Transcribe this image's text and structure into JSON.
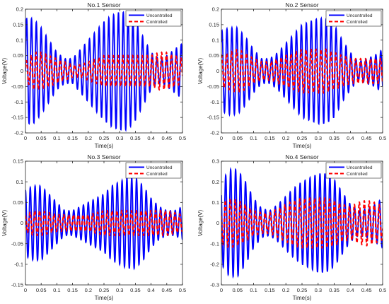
{
  "chart_data": [
    {
      "type": "line",
      "title": "No.1 Sensor",
      "xlabel": "Time(s)",
      "ylabel": "Voltage(V)",
      "xlim": [
        0,
        0.5
      ],
      "ylim": [
        -0.2,
        0.2
      ],
      "xticks": [
        "0",
        "0.05",
        "0.1",
        "0.15",
        "0.2",
        "0.25",
        "0.3",
        "0.35",
        "0.4",
        "0.45",
        "0.5"
      ],
      "yticks": [
        "-0.2",
        "-0.15",
        "-0.1",
        "-0.05",
        "0",
        "0.05",
        "0.1",
        "0.15",
        "0.2"
      ],
      "grid": false,
      "legend_position": "top-right",
      "series": [
        {
          "name": "Uncontrolled",
          "color": "#0000ff",
          "style": "solid",
          "x": [
            0,
            0.025,
            0.05,
            0.075,
            0.1,
            0.125,
            0.15,
            0.175,
            0.2,
            0.225,
            0.25,
            0.275,
            0.3,
            0.325,
            0.35,
            0.375,
            0.4,
            0.425,
            0.45,
            0.475,
            0.5
          ],
          "envelope": [
            0.17,
            0.17,
            0.14,
            0.1,
            0.06,
            0.04,
            0.04,
            0.07,
            0.1,
            0.13,
            0.16,
            0.18,
            0.19,
            0.19,
            0.16,
            0.11,
            0.06,
            0.04,
            0.05,
            0.07,
            0.09
          ],
          "frequency_hz": 65,
          "phase": 0
        },
        {
          "name": "Controlled",
          "color": "#ff0000",
          "style": "dashed",
          "x": [
            0,
            0.025,
            0.05,
            0.075,
            0.1,
            0.125,
            0.15,
            0.175,
            0.2,
            0.225,
            0.25,
            0.275,
            0.3,
            0.325,
            0.35,
            0.375,
            0.4,
            0.425,
            0.45,
            0.475,
            0.5
          ],
          "envelope": [
            0.03,
            0.06,
            0.06,
            0.05,
            0.04,
            0.03,
            0.02,
            0.02,
            0.03,
            0.04,
            0.05,
            0.05,
            0.05,
            0.05,
            0.05,
            0.05,
            0.05,
            0.06,
            0.06,
            0.05,
            0.04
          ],
          "frequency_hz": 65,
          "phase": 0.4
        }
      ]
    },
    {
      "type": "line",
      "title": "No.2 Sensor",
      "xlabel": "Time(s)",
      "ylabel": "Voltage(V)",
      "xlim": [
        0,
        0.5
      ],
      "ylim": [
        -0.2,
        0.2
      ],
      "xticks": [
        "0",
        "0.05",
        "0.1",
        "0.15",
        "0.2",
        "0.25",
        "0.3",
        "0.35",
        "0.4",
        "0.45",
        "0.5"
      ],
      "yticks": [
        "-0.2",
        "-0.15",
        "-0.1",
        "-0.05",
        "0",
        "0.05",
        "0.1",
        "0.15",
        "0.2"
      ],
      "grid": false,
      "legend_position": "top-right",
      "series": [
        {
          "name": "Uncontrolled",
          "color": "#0000ff",
          "style": "solid",
          "x": [
            0,
            0.025,
            0.05,
            0.075,
            0.1,
            0.125,
            0.15,
            0.175,
            0.2,
            0.225,
            0.25,
            0.275,
            0.3,
            0.325,
            0.35,
            0.375,
            0.4,
            0.425,
            0.45,
            0.475,
            0.5
          ],
          "envelope": [
            0.13,
            0.14,
            0.14,
            0.11,
            0.07,
            0.04,
            0.04,
            0.06,
            0.09,
            0.12,
            0.15,
            0.16,
            0.17,
            0.17,
            0.15,
            0.1,
            0.06,
            0.03,
            0.04,
            0.05,
            0.07
          ],
          "frequency_hz": 65,
          "phase": 0.8
        },
        {
          "name": "Controlled",
          "color": "#ff0000",
          "style": "dashed",
          "x": [
            0,
            0.025,
            0.05,
            0.075,
            0.1,
            0.125,
            0.15,
            0.175,
            0.2,
            0.225,
            0.25,
            0.275,
            0.3,
            0.325,
            0.35,
            0.375,
            0.4,
            0.425,
            0.45,
            0.475,
            0.5
          ],
          "envelope": [
            0.05,
            0.06,
            0.07,
            0.06,
            0.04,
            0.03,
            0.03,
            0.04,
            0.05,
            0.06,
            0.07,
            0.07,
            0.07,
            0.07,
            0.06,
            0.05,
            0.04,
            0.04,
            0.04,
            0.04,
            0.04
          ],
          "frequency_hz": 65,
          "phase": 1.2
        }
      ]
    },
    {
      "type": "line",
      "title": "No.3 Sensor",
      "xlabel": "Time(s)",
      "ylabel": "Voltage(V)",
      "xlim": [
        0,
        0.5
      ],
      "ylim": [
        -0.15,
        0.15
      ],
      "xticks": [
        "0",
        "0.05",
        "0.1",
        "0.15",
        "0.2",
        "0.25",
        "0.3",
        "0.35",
        "0.4",
        "0.45",
        "0.5"
      ],
      "yticks": [
        "-0.15",
        "-0.1",
        "-0.05",
        "0",
        "0.05",
        "0.1",
        "0.15"
      ],
      "grid": false,
      "legend_position": "top-right",
      "series": [
        {
          "name": "Uncontrolled",
          "color": "#0000ff",
          "style": "solid",
          "x": [
            0,
            0.025,
            0.05,
            0.075,
            0.1,
            0.125,
            0.15,
            0.175,
            0.2,
            0.225,
            0.25,
            0.275,
            0.3,
            0.325,
            0.35,
            0.375,
            0.4,
            0.425,
            0.45,
            0.475,
            0.5
          ],
          "envelope": [
            0.08,
            0.09,
            0.09,
            0.07,
            0.05,
            0.03,
            0.03,
            0.04,
            0.05,
            0.06,
            0.07,
            0.09,
            0.1,
            0.11,
            0.11,
            0.09,
            0.06,
            0.04,
            0.03,
            0.03,
            0.04
          ],
          "frequency_hz": 65,
          "phase": 1.6
        },
        {
          "name": "Controlled",
          "color": "#ff0000",
          "style": "dashed",
          "x": [
            0,
            0.025,
            0.05,
            0.075,
            0.1,
            0.125,
            0.15,
            0.175,
            0.2,
            0.225,
            0.25,
            0.275,
            0.3,
            0.325,
            0.35,
            0.375,
            0.4,
            0.425,
            0.45,
            0.475,
            0.5
          ],
          "envelope": [
            0.02,
            0.03,
            0.03,
            0.025,
            0.02,
            0.02,
            0.02,
            0.02,
            0.02,
            0.025,
            0.03,
            0.03,
            0.03,
            0.03,
            0.03,
            0.03,
            0.03,
            0.03,
            0.03,
            0.025,
            0.02
          ],
          "frequency_hz": 65,
          "phase": 2.0
        }
      ]
    },
    {
      "type": "line",
      "title": "No.4 Sensor",
      "xlabel": "Time(s)",
      "ylabel": "Voltage(V)",
      "xlim": [
        0,
        0.5
      ],
      "ylim": [
        -0.3,
        0.3
      ],
      "xticks": [
        "0",
        "0.05",
        "0.1",
        "0.15",
        "0.2",
        "0.25",
        "0.3",
        "0.35",
        "0.4",
        "0.45",
        "0.5"
      ],
      "yticks": [
        "-0.3",
        "-0.2",
        "-0.1",
        "0",
        "0.1",
        "0.2",
        "0.3"
      ],
      "grid": false,
      "legend_position": "top-right",
      "series": [
        {
          "name": "Uncontrolled",
          "color": "#0000ff",
          "style": "solid",
          "x": [
            0,
            0.025,
            0.05,
            0.075,
            0.1,
            0.125,
            0.15,
            0.175,
            0.2,
            0.225,
            0.25,
            0.275,
            0.3,
            0.325,
            0.35,
            0.375,
            0.4,
            0.425,
            0.45,
            0.475,
            0.5
          ],
          "envelope": [
            0.2,
            0.26,
            0.26,
            0.2,
            0.12,
            0.07,
            0.06,
            0.09,
            0.13,
            0.17,
            0.2,
            0.22,
            0.24,
            0.24,
            0.21,
            0.15,
            0.09,
            0.06,
            0.07,
            0.09,
            0.12
          ],
          "frequency_hz": 65,
          "phase": 2.4
        },
        {
          "name": "Controlled",
          "color": "#ff0000",
          "style": "dashed",
          "x": [
            0,
            0.025,
            0.05,
            0.075,
            0.1,
            0.125,
            0.15,
            0.175,
            0.2,
            0.225,
            0.25,
            0.275,
            0.3,
            0.325,
            0.35,
            0.375,
            0.4,
            0.425,
            0.45,
            0.475,
            0.5
          ],
          "envelope": [
            0.1,
            0.12,
            0.11,
            0.09,
            0.06,
            0.05,
            0.05,
            0.07,
            0.09,
            0.11,
            0.12,
            0.12,
            0.12,
            0.12,
            0.11,
            0.09,
            0.08,
            0.1,
            0.11,
            0.1,
            0.08
          ],
          "frequency_hz": 65,
          "phase": 2.8
        }
      ]
    }
  ]
}
